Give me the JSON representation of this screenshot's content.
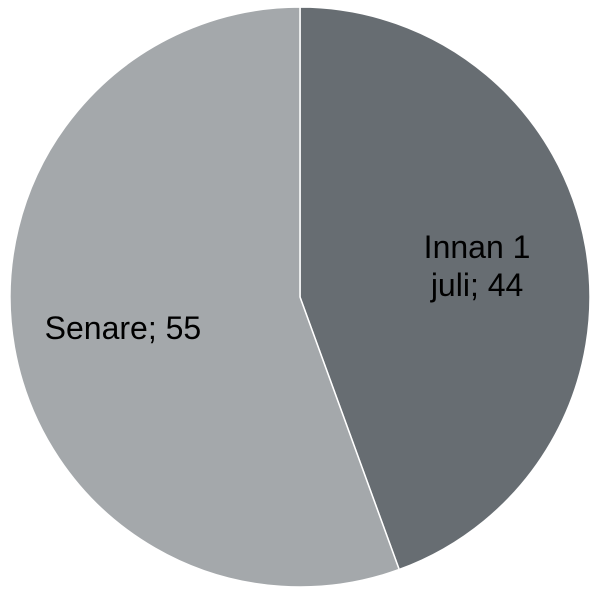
{
  "chart_data": {
    "type": "pie",
    "title": "",
    "slices": [
      {
        "label": "Innan 1 juli",
        "label_lines": [
          "Innan 1",
          "juli; 44"
        ],
        "value": 44,
        "color": "#676d72"
      },
      {
        "label": "Senare",
        "label_lines": [
          "Senare; 55"
        ],
        "value": 55,
        "color": "#a4a8ab"
      }
    ],
    "start_angle": "12 o'clock",
    "direction": "clockwise",
    "slice_border_color": "#ffffff",
    "legend": "none"
  }
}
